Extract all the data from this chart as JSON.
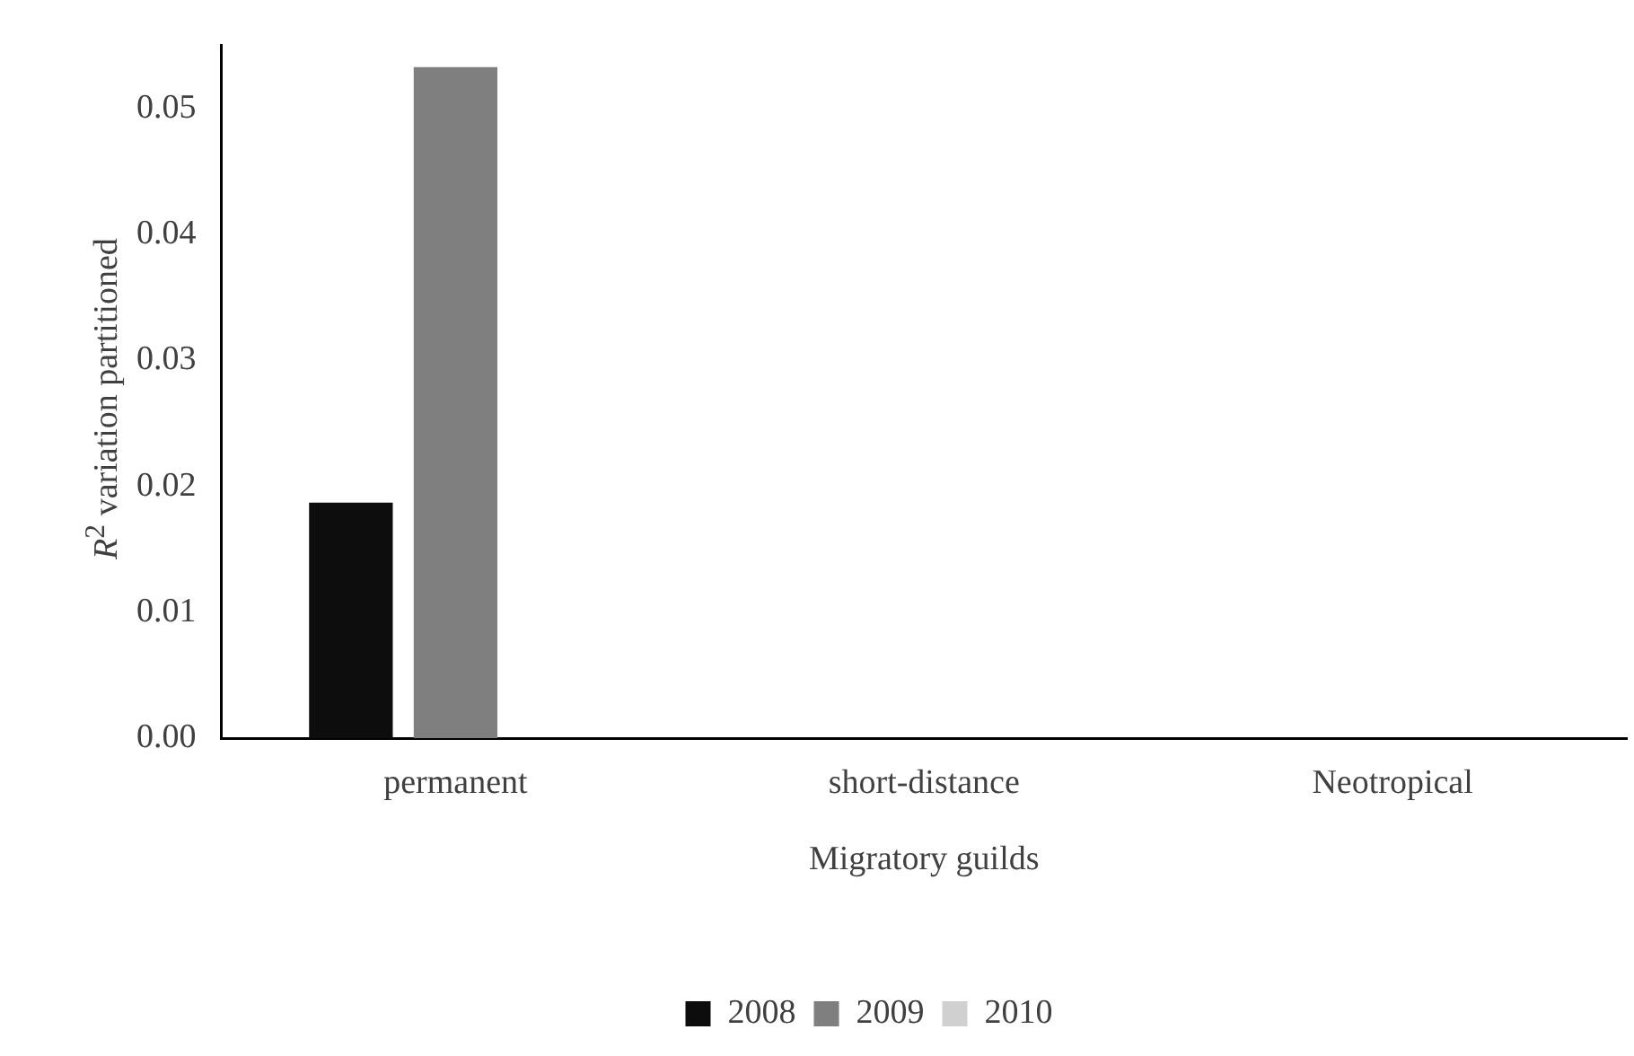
{
  "chart_data": {
    "type": "bar",
    "xlabel": "Migratory guilds",
    "ylabel": "R$^{2}$ variation partitioned",
    "categories": [
      "permanent",
      "short-distance",
      "Neotropical"
    ],
    "series": [
      {
        "name": "2008",
        "color": "#0d0d0d",
        "values": [
          0.0187,
          0,
          0
        ]
      },
      {
        "name": "2009",
        "color": "#7f7f7f",
        "values": [
          0.0533,
          0,
          0
        ]
      },
      {
        "name": "2010",
        "color": "#d0d0d0",
        "values": [
          0,
          0,
          0
        ]
      }
    ],
    "ylim": [
      0,
      0.055
    ],
    "yticks": [
      {
        "value": 0,
        "label": "0.00"
      },
      {
        "value": 0.01,
        "label": "0.01"
      },
      {
        "value": 0.02,
        "label": "0.02"
      },
      {
        "value": 0.03,
        "label": "0.03"
      },
      {
        "value": 0.04,
        "label": "0.04"
      },
      {
        "value": 0.05,
        "label": "0.05"
      }
    ],
    "grid": false,
    "legend": "bottom"
  }
}
